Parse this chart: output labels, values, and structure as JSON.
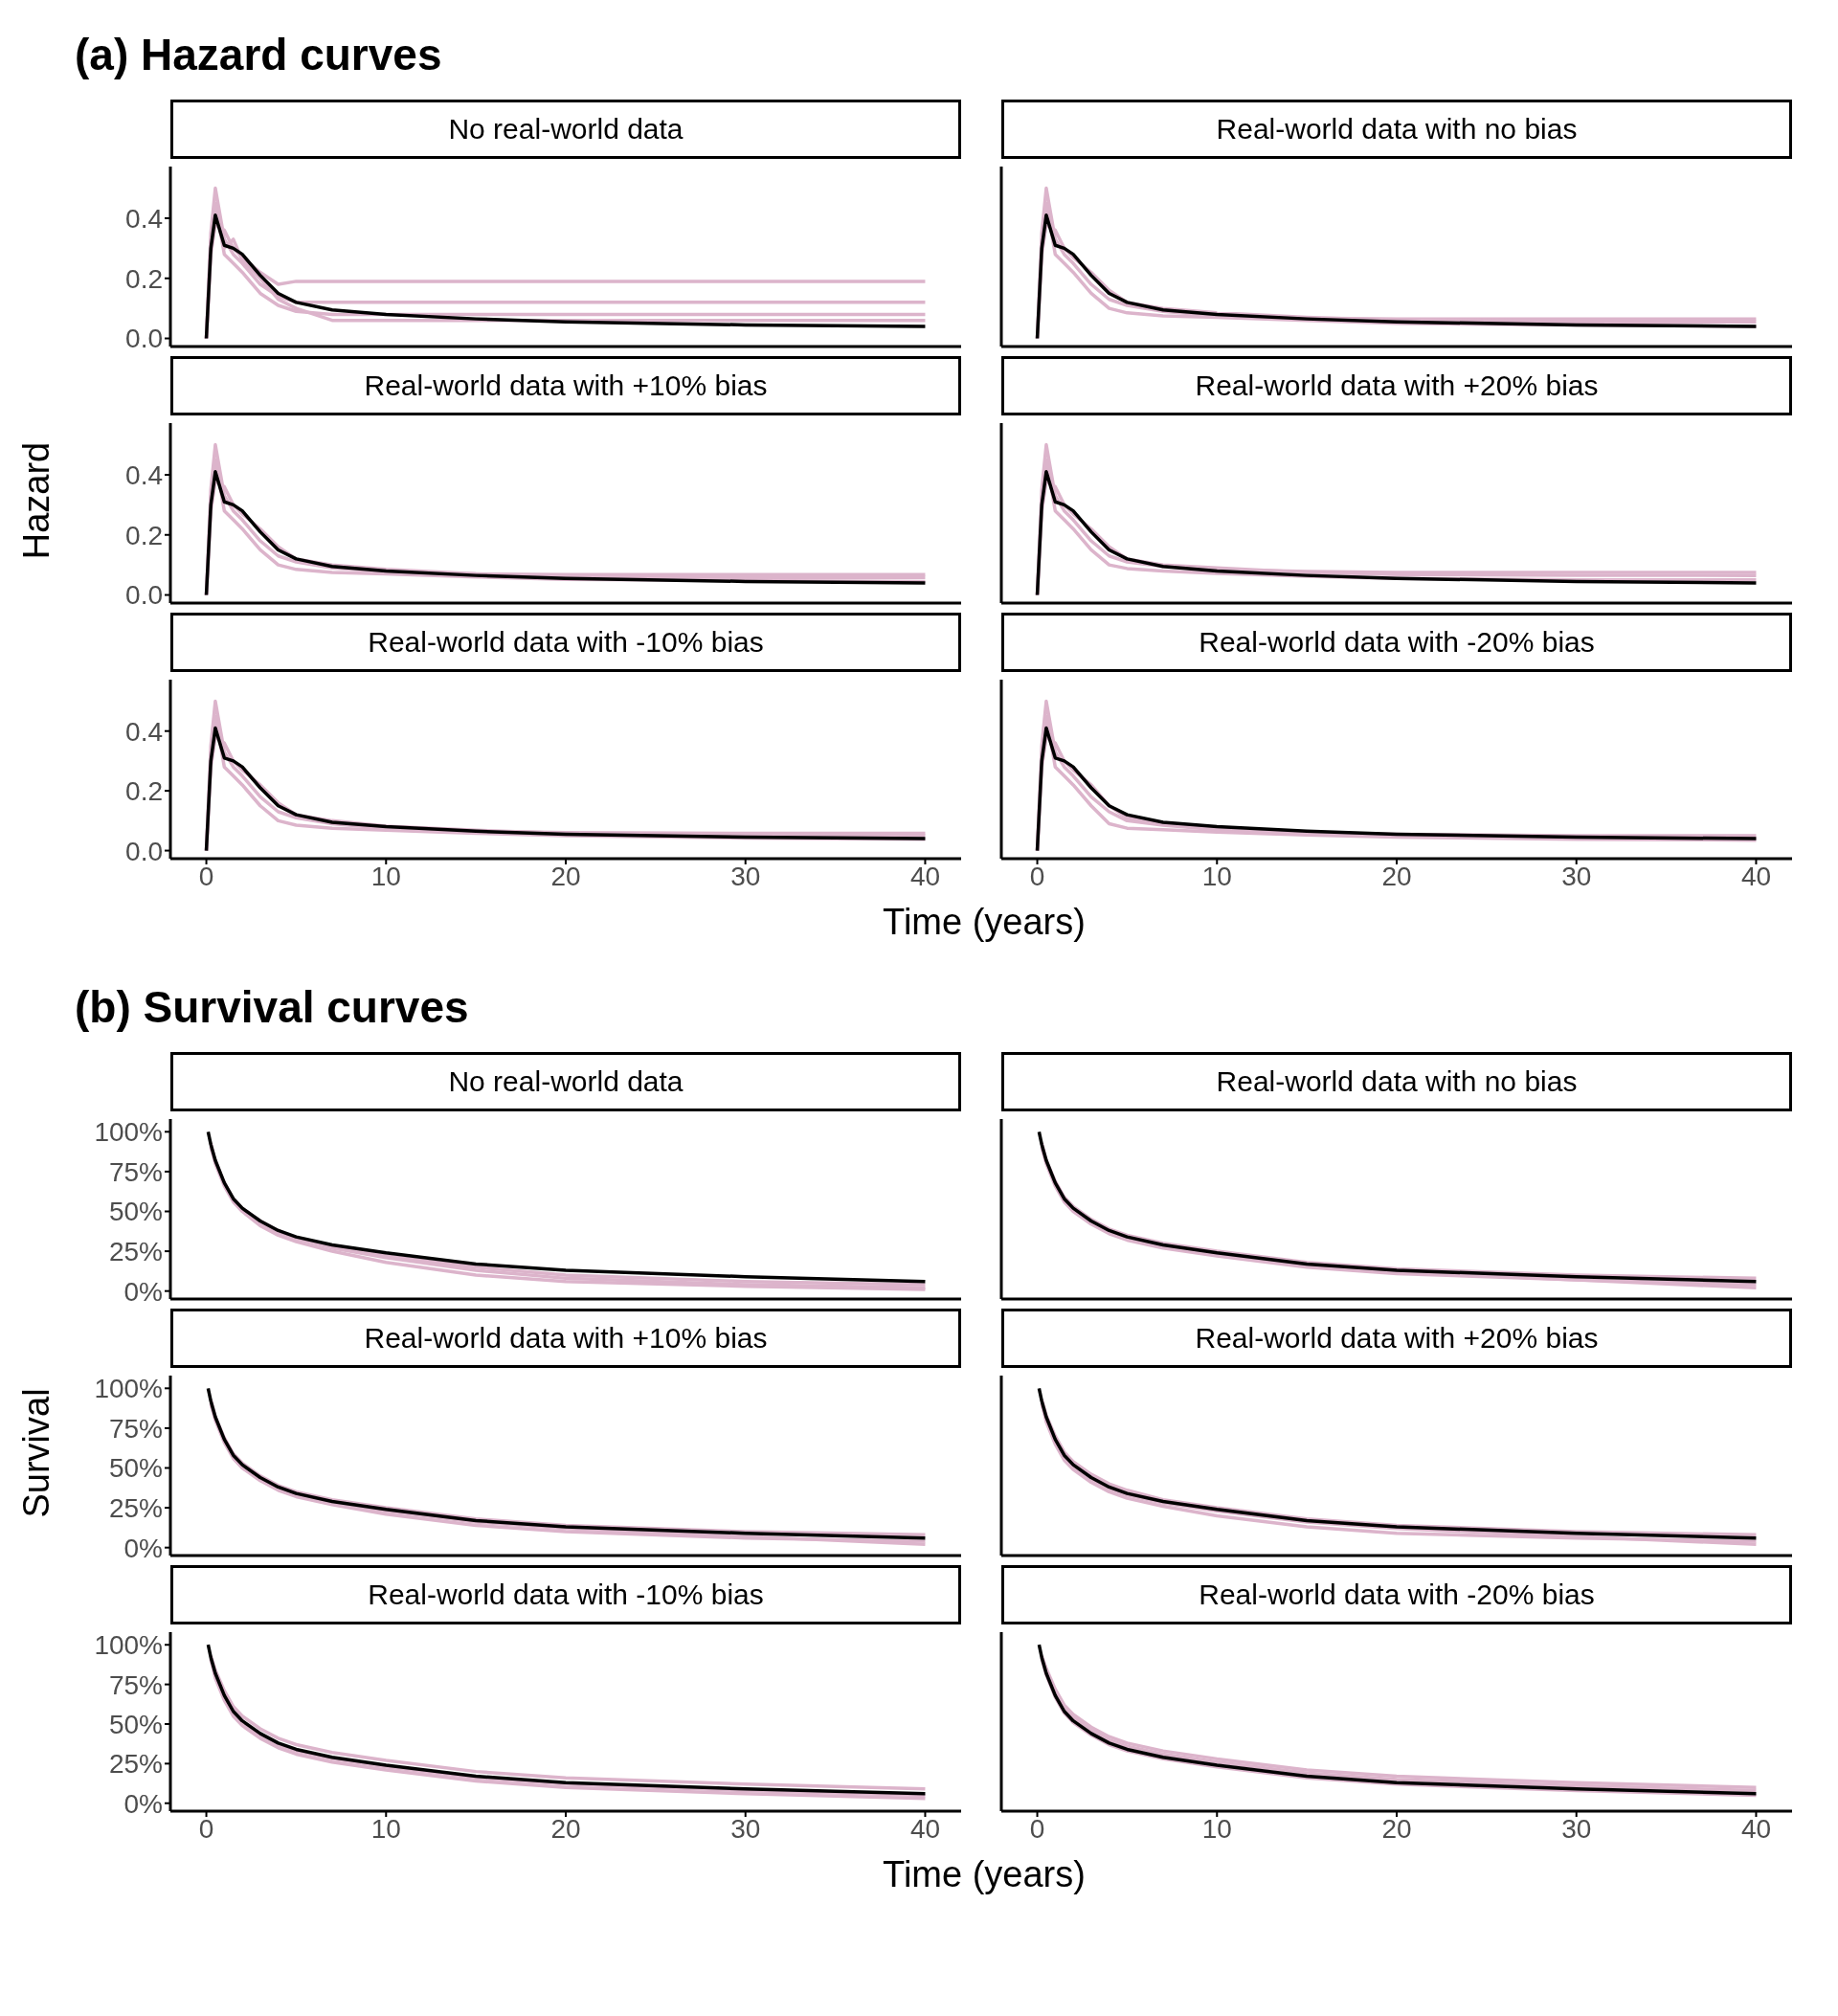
{
  "chart_data": [
    {
      "type": "line",
      "title": "(a) Hazard curves",
      "subtitle": "No real-world data",
      "tick_labels": "y",
      "marker": "none",
      "xlim": [
        -2,
        42
      ],
      "xticks": [
        0,
        10,
        20,
        30,
        40
      ],
      "ylim": [
        -0.027,
        0.572
      ],
      "yticks": [
        {
          "value": 0,
          "label": "0.0"
        },
        {
          "value": 0.2,
          "label": "0.2"
        },
        {
          "value": 0.4,
          "label": "0.4"
        }
      ],
      "x": [
        0,
        0.25,
        0.5,
        1,
        1.5,
        2,
        3,
        4,
        5,
        7,
        10,
        15,
        20,
        30,
        40
      ],
      "series": [
        {
          "color": "#dcb4cb",
          "values": [
            0,
            0.35,
            0.5,
            0.33,
            0.28,
            0.25,
            0.18,
            0.14,
            0.12,
            0.12,
            0.12,
            0.12,
            0.12,
            0.12,
            0.12
          ]
        },
        {
          "color": "#dcb4cb",
          "values": [
            0,
            0.28,
            0.38,
            0.36,
            0.3,
            0.27,
            0.22,
            0.18,
            0.19,
            0.19,
            0.19,
            0.19,
            0.19,
            0.19,
            0.19
          ]
        },
        {
          "color": "#dcb4cb",
          "values": [
            0,
            0.3,
            0.45,
            0.28,
            0.25,
            0.22,
            0.15,
            0.11,
            0.09,
            0.08,
            0.08,
            0.08,
            0.08,
            0.08,
            0.08
          ]
        },
        {
          "color": "#dcb4cb",
          "values": [
            0,
            0.32,
            0.42,
            0.3,
            0.33,
            0.26,
            0.2,
            0.13,
            0.1,
            0.06,
            0.06,
            0.06,
            0.06,
            0.06,
            0.06
          ]
        },
        {
          "color": "#000000",
          "values": [
            0,
            0.3,
            0.41,
            0.31,
            0.3,
            0.28,
            0.21,
            0.15,
            0.12,
            0.095,
            0.08,
            0.065,
            0.055,
            0.045,
            0.04
          ]
        }
      ]
    },
    {
      "type": "line",
      "subtitle": "Real-world data with no bias",
      "tick_labels": false,
      "marker": "none",
      "xlim": [
        -2,
        42
      ],
      "xticks": [
        0,
        10,
        20,
        30,
        40
      ],
      "ylim": [
        -0.027,
        0.572
      ],
      "x": [
        0,
        0.25,
        0.5,
        1,
        1.5,
        2,
        3,
        4,
        5,
        7,
        10,
        15,
        20,
        30,
        40
      ],
      "series": [
        {
          "color": "#dcb4cb",
          "values": [
            0,
            0.35,
            0.5,
            0.33,
            0.28,
            0.25,
            0.18,
            0.13,
            0.11,
            0.09,
            0.075,
            0.068,
            0.065,
            0.065,
            0.065
          ]
        },
        {
          "color": "#dcb4cb",
          "values": [
            0,
            0.28,
            0.38,
            0.36,
            0.3,
            0.27,
            0.22,
            0.16,
            0.12,
            0.1,
            0.085,
            0.07,
            0.06,
            0.055,
            0.055
          ]
        },
        {
          "color": "#dcb4cb",
          "values": [
            0,
            0.3,
            0.45,
            0.28,
            0.25,
            0.22,
            0.15,
            0.1,
            0.085,
            0.075,
            0.07,
            0.06,
            0.05,
            0.045,
            0.04
          ]
        },
        {
          "color": "#000000",
          "values": [
            0,
            0.3,
            0.41,
            0.31,
            0.3,
            0.28,
            0.21,
            0.15,
            0.12,
            0.095,
            0.08,
            0.065,
            0.055,
            0.045,
            0.04
          ]
        }
      ]
    },
    {
      "type": "line",
      "subtitle": "Real-world data with +10% bias",
      "ylabel": "Hazard",
      "tick_labels": "y",
      "marker": "none",
      "xlim": [
        -2,
        42
      ],
      "xticks": [
        0,
        10,
        20,
        30,
        40
      ],
      "ylim": [
        -0.027,
        0.572
      ],
      "yticks": [
        {
          "value": 0,
          "label": "0.0"
        },
        {
          "value": 0.2,
          "label": "0.2"
        },
        {
          "value": 0.4,
          "label": "0.4"
        }
      ],
      "x": [
        0,
        0.25,
        0.5,
        1,
        1.5,
        2,
        3,
        4,
        5,
        7,
        10,
        15,
        20,
        30,
        40
      ],
      "series": [
        {
          "color": "#dcb4cb",
          "values": [
            0,
            0.35,
            0.5,
            0.33,
            0.28,
            0.25,
            0.18,
            0.13,
            0.11,
            0.09,
            0.078,
            0.07,
            0.068,
            0.068,
            0.068
          ]
        },
        {
          "color": "#dcb4cb",
          "values": [
            0,
            0.28,
            0.38,
            0.36,
            0.3,
            0.27,
            0.22,
            0.16,
            0.12,
            0.1,
            0.085,
            0.07,
            0.062,
            0.058,
            0.058
          ]
        },
        {
          "color": "#dcb4cb",
          "values": [
            0,
            0.3,
            0.45,
            0.28,
            0.25,
            0.22,
            0.15,
            0.1,
            0.085,
            0.075,
            0.07,
            0.06,
            0.052,
            0.048,
            0.045
          ]
        },
        {
          "color": "#000000",
          "values": [
            0,
            0.3,
            0.41,
            0.31,
            0.3,
            0.28,
            0.21,
            0.15,
            0.12,
            0.095,
            0.08,
            0.065,
            0.055,
            0.045,
            0.04
          ]
        }
      ]
    },
    {
      "type": "line",
      "subtitle": "Real-world data with +20% bias",
      "tick_labels": false,
      "marker": "none",
      "xlim": [
        -2,
        42
      ],
      "xticks": [
        0,
        10,
        20,
        30,
        40
      ],
      "ylim": [
        -0.027,
        0.572
      ],
      "x": [
        0,
        0.25,
        0.5,
        1,
        1.5,
        2,
        3,
        4,
        5,
        7,
        10,
        15,
        20,
        30,
        40
      ],
      "series": [
        {
          "color": "#dcb4cb",
          "values": [
            0,
            0.35,
            0.5,
            0.33,
            0.28,
            0.25,
            0.18,
            0.13,
            0.11,
            0.095,
            0.085,
            0.078,
            0.075,
            0.075,
            0.075
          ]
        },
        {
          "color": "#dcb4cb",
          "values": [
            0,
            0.28,
            0.38,
            0.36,
            0.3,
            0.27,
            0.22,
            0.16,
            0.12,
            0.1,
            0.09,
            0.075,
            0.068,
            0.065,
            0.065
          ]
        },
        {
          "color": "#dcb4cb",
          "values": [
            0,
            0.3,
            0.45,
            0.28,
            0.25,
            0.22,
            0.15,
            0.1,
            0.088,
            0.08,
            0.072,
            0.062,
            0.055,
            0.05,
            0.05
          ]
        },
        {
          "color": "#000000",
          "values": [
            0,
            0.3,
            0.41,
            0.31,
            0.3,
            0.28,
            0.21,
            0.15,
            0.12,
            0.095,
            0.08,
            0.065,
            0.055,
            0.045,
            0.04
          ]
        }
      ]
    },
    {
      "type": "line",
      "subtitle": "Real-world data with -10% bias",
      "xlabel": "Time (years)",
      "marker": "none",
      "xlim": [
        -2,
        42
      ],
      "xticks": [
        0,
        10,
        20,
        30,
        40
      ],
      "ylim": [
        -0.027,
        0.572
      ],
      "yticks": [
        {
          "value": 0,
          "label": "0.0"
        },
        {
          "value": 0.2,
          "label": "0.2"
        },
        {
          "value": 0.4,
          "label": "0.4"
        }
      ],
      "x": [
        0,
        0.25,
        0.5,
        1,
        1.5,
        2,
        3,
        4,
        5,
        7,
        10,
        15,
        20,
        30,
        40
      ],
      "series": [
        {
          "color": "#dcb4cb",
          "values": [
            0,
            0.35,
            0.5,
            0.33,
            0.28,
            0.25,
            0.18,
            0.13,
            0.11,
            0.09,
            0.075,
            0.065,
            0.06,
            0.058,
            0.058
          ]
        },
        {
          "color": "#dcb4cb",
          "values": [
            0,
            0.28,
            0.38,
            0.36,
            0.3,
            0.27,
            0.22,
            0.16,
            0.12,
            0.1,
            0.082,
            0.068,
            0.058,
            0.052,
            0.05
          ]
        },
        {
          "color": "#dcb4cb",
          "values": [
            0,
            0.3,
            0.45,
            0.28,
            0.25,
            0.22,
            0.15,
            0.1,
            0.085,
            0.075,
            0.068,
            0.058,
            0.05,
            0.042,
            0.038
          ]
        },
        {
          "color": "#000000",
          "values": [
            0,
            0.3,
            0.41,
            0.31,
            0.3,
            0.28,
            0.21,
            0.15,
            0.12,
            0.095,
            0.08,
            0.065,
            0.055,
            0.045,
            0.04
          ]
        }
      ]
    },
    {
      "type": "line",
      "subtitle": "Real-world data with -20% bias",
      "tick_labels": "x",
      "marker": "none",
      "xlim": [
        -2,
        42
      ],
      "xticks": [
        0,
        10,
        20,
        30,
        40
      ],
      "ylim": [
        -0.027,
        0.572
      ],
      "x": [
        0,
        0.25,
        0.5,
        1,
        1.5,
        2,
        3,
        4,
        5,
        7,
        10,
        15,
        20,
        30,
        40
      ],
      "series": [
        {
          "color": "#dcb4cb",
          "values": [
            0,
            0.35,
            0.5,
            0.33,
            0.28,
            0.25,
            0.18,
            0.13,
            0.1,
            0.085,
            0.07,
            0.06,
            0.055,
            0.05,
            0.05
          ]
        },
        {
          "color": "#dcb4cb",
          "values": [
            0,
            0.28,
            0.38,
            0.36,
            0.3,
            0.27,
            0.22,
            0.15,
            0.11,
            0.09,
            0.075,
            0.062,
            0.052,
            0.045,
            0.042
          ]
        },
        {
          "color": "#dcb4cb",
          "values": [
            0,
            0.3,
            0.45,
            0.28,
            0.25,
            0.22,
            0.15,
            0.09,
            0.075,
            0.07,
            0.062,
            0.052,
            0.045,
            0.038,
            0.035
          ]
        },
        {
          "color": "#000000",
          "values": [
            0,
            0.3,
            0.41,
            0.31,
            0.3,
            0.28,
            0.21,
            0.15,
            0.12,
            0.095,
            0.08,
            0.065,
            0.055,
            0.045,
            0.04
          ]
        }
      ]
    },
    {
      "type": "line",
      "title": "(b) Survival curves",
      "subtitle": "No real-world data",
      "tick_labels": "y",
      "marker": "none",
      "xlim": [
        -2,
        42
      ],
      "xticks": [
        0,
        10,
        20,
        30,
        40
      ],
      "ylim": [
        -5,
        108
      ],
      "yticks": [
        {
          "value": 0,
          "label": "0%"
        },
        {
          "value": 25,
          "label": "25%"
        },
        {
          "value": 50,
          "label": "50%"
        },
        {
          "value": 75,
          "label": "75%"
        },
        {
          "value": 100,
          "label": "100%"
        }
      ],
      "x": [
        0.1,
        0.25,
        0.5,
        1,
        1.5,
        2,
        3,
        4,
        5,
        7,
        10,
        15,
        20,
        30,
        40
      ],
      "series": [
        {
          "color": "#dcb4cb",
          "x": [
            0.25,
            0.5,
            1,
            1.5,
            2,
            3,
            4,
            5,
            7,
            10,
            15,
            20,
            30,
            40
          ],
          "values": [
            93,
            81,
            67,
            57,
            51,
            43,
            37,
            33,
            27,
            21,
            13,
            8,
            4,
            2
          ]
        },
        {
          "color": "#dcb4cb",
          "x": [
            0.25,
            0.5,
            1,
            1.5,
            2,
            3,
            4,
            5,
            7,
            10,
            15,
            20,
            30,
            40
          ],
          "values": [
            91,
            80,
            66,
            56,
            50,
            41,
            35,
            31,
            25,
            18,
            10,
            6,
            3,
            1
          ]
        },
        {
          "color": "#dcb4cb",
          "x": [
            0.25,
            0.5,
            1,
            1.5,
            2,
            3,
            4,
            5,
            7,
            10,
            15,
            20,
            30,
            40
          ],
          "values": [
            90,
            82,
            68,
            58,
            52,
            44,
            38,
            33,
            28,
            22,
            15,
            10,
            6,
            4
          ]
        },
        {
          "color": "#000000",
          "values": [
            100,
            92,
            82,
            68,
            58,
            52,
            44,
            38,
            34,
            29,
            24,
            17,
            13,
            9,
            6
          ]
        }
      ]
    },
    {
      "type": "line",
      "subtitle": "Real-world data with no bias",
      "tick_labels": false,
      "marker": "none",
      "xlim": [
        -2,
        42
      ],
      "xticks": [
        0,
        10,
        20,
        30,
        40
      ],
      "ylim": [
        -5,
        108
      ],
      "x": [
        0.1,
        0.25,
        0.5,
        1,
        1.5,
        2,
        3,
        4,
        5,
        7,
        10,
        15,
        20,
        30,
        40
      ],
      "series": [
        {
          "color": "#dcb4cb",
          "x": [
            0.25,
            0.5,
            1,
            1.5,
            2,
            3,
            4,
            5,
            7,
            10,
            15,
            20,
            30,
            40
          ],
          "values": [
            93,
            82,
            69,
            59,
            53,
            45,
            39,
            35,
            30,
            25,
            18,
            14,
            10,
            8
          ]
        },
        {
          "color": "#dcb4cb",
          "x": [
            0.25,
            0.5,
            1,
            1.5,
            2,
            3,
            4,
            5,
            7,
            10,
            15,
            20,
            30,
            40
          ],
          "values": [
            91,
            80,
            66,
            56,
            50,
            42,
            36,
            32,
            27,
            22,
            15,
            11,
            7,
            4
          ]
        },
        {
          "color": "#dcb4cb",
          "x": [
            0.25,
            0.5,
            1,
            1.5,
            2,
            3,
            4,
            5,
            7,
            10,
            15,
            20,
            30,
            40
          ],
          "values": [
            90,
            81,
            67,
            57,
            51,
            43,
            37,
            33,
            28,
            23,
            16,
            12,
            7,
            2
          ]
        },
        {
          "color": "#000000",
          "values": [
            100,
            92,
            82,
            68,
            58,
            52,
            44,
            38,
            34,
            29,
            24,
            17,
            13,
            9,
            6
          ]
        }
      ]
    },
    {
      "type": "line",
      "subtitle": "Real-world data with +10% bias",
      "ylabel": "Survival",
      "tick_labels": "y",
      "marker": "none",
      "xlim": [
        -2,
        42
      ],
      "xticks": [
        0,
        10,
        20,
        30,
        40
      ],
      "ylim": [
        -5,
        108
      ],
      "yticks": [
        {
          "value": 0,
          "label": "0%"
        },
        {
          "value": 25,
          "label": "25%"
        },
        {
          "value": 50,
          "label": "50%"
        },
        {
          "value": 75,
          "label": "75%"
        },
        {
          "value": 100,
          "label": "100%"
        }
      ],
      "x": [
        0.1,
        0.25,
        0.5,
        1,
        1.5,
        2,
        3,
        4,
        5,
        7,
        10,
        15,
        20,
        30,
        40
      ],
      "series": [
        {
          "color": "#dcb4cb",
          "x": [
            0.25,
            0.5,
            1,
            1.5,
            2,
            3,
            4,
            5,
            7,
            10,
            15,
            20,
            30,
            40
          ],
          "values": [
            93,
            82,
            69,
            59,
            53,
            45,
            39,
            35,
            30,
            25,
            18,
            14,
            10,
            8
          ]
        },
        {
          "color": "#dcb4cb",
          "x": [
            0.25,
            0.5,
            1,
            1.5,
            2,
            3,
            4,
            5,
            7,
            10,
            15,
            20,
            30,
            40
          ],
          "values": [
            91,
            80,
            66,
            56,
            50,
            42,
            36,
            32,
            27,
            21,
            14,
            10,
            6,
            4
          ]
        },
        {
          "color": "#dcb4cb",
          "x": [
            0.25,
            0.5,
            1,
            1.5,
            2,
            3,
            4,
            5,
            7,
            10,
            15,
            20,
            30,
            40
          ],
          "values": [
            90,
            81,
            67,
            57,
            51,
            43,
            37,
            33,
            28,
            23,
            16,
            12,
            7,
            2
          ]
        },
        {
          "color": "#000000",
          "values": [
            100,
            92,
            82,
            68,
            58,
            52,
            44,
            38,
            34,
            29,
            24,
            17,
            13,
            9,
            6
          ]
        }
      ]
    },
    {
      "type": "line",
      "subtitle": "Real-world data with +20% bias",
      "tick_labels": false,
      "marker": "none",
      "xlim": [
        -2,
        42
      ],
      "xticks": [
        0,
        10,
        20,
        30,
        40
      ],
      "ylim": [
        -5,
        108
      ],
      "x": [
        0.1,
        0.25,
        0.5,
        1,
        1.5,
        2,
        3,
        4,
        5,
        7,
        10,
        15,
        20,
        30,
        40
      ],
      "series": [
        {
          "color": "#dcb4cb",
          "x": [
            0.25,
            0.5,
            1,
            1.5,
            2,
            3,
            4,
            5,
            7,
            10,
            15,
            20,
            30,
            40
          ],
          "values": [
            90,
            81,
            67,
            57,
            51,
            43,
            37,
            33,
            28,
            23,
            16,
            12,
            7,
            2
          ]
        },
        {
          "color": "#dcb4cb",
          "x": [
            0.25,
            0.5,
            1,
            1.5,
            2,
            3,
            4,
            5,
            7,
            10,
            15,
            20,
            30,
            40
          ],
          "values": [
            91,
            79,
            65,
            55,
            49,
            41,
            35,
            31,
            26,
            20,
            13,
            9,
            6,
            4
          ]
        },
        {
          "color": "#dcb4cb",
          "x": [
            0.25,
            0.5,
            1,
            1.5,
            2,
            3,
            4,
            5,
            7,
            10,
            15,
            20,
            30,
            40
          ],
          "values": [
            93,
            83,
            70,
            60,
            54,
            46,
            40,
            36,
            30,
            25,
            18,
            14,
            10,
            8
          ]
        },
        {
          "color": "#000000",
          "values": [
            100,
            92,
            82,
            68,
            58,
            52,
            44,
            38,
            34,
            29,
            24,
            17,
            13,
            9,
            6
          ]
        }
      ]
    },
    {
      "type": "line",
      "subtitle": "Real-world data with -10% bias",
      "xlabel": "Time (years)",
      "marker": "none",
      "xlim": [
        -2,
        42
      ],
      "xticks": [
        0,
        10,
        20,
        30,
        40
      ],
      "ylim": [
        -5,
        108
      ],
      "yticks": [
        {
          "value": 0,
          "label": "0%"
        },
        {
          "value": 25,
          "label": "25%"
        },
        {
          "value": 50,
          "label": "50%"
        },
        {
          "value": 75,
          "label": "75%"
        },
        {
          "value": 100,
          "label": "100%"
        }
      ],
      "x": [
        0.1,
        0.25,
        0.5,
        1,
        1.5,
        2,
        3,
        4,
        5,
        7,
        10,
        15,
        20,
        30,
        40
      ],
      "series": [
        {
          "color": "#dcb4cb",
          "x": [
            0.25,
            0.5,
            1,
            1.5,
            2,
            3,
            4,
            5,
            7,
            10,
            15,
            20,
            30,
            40
          ],
          "values": [
            93,
            84,
            71,
            61,
            55,
            47,
            41,
            37,
            32,
            27,
            20,
            16,
            12,
            9
          ]
        },
        {
          "color": "#dcb4cb",
          "x": [
            0.25,
            0.5,
            1,
            1.5,
            2,
            3,
            4,
            5,
            7,
            10,
            15,
            20,
            30,
            40
          ],
          "values": [
            91,
            81,
            67,
            57,
            51,
            43,
            37,
            33,
            28,
            23,
            16,
            12,
            8,
            5
          ]
        },
        {
          "color": "#dcb4cb",
          "x": [
            0.25,
            0.5,
            1,
            1.5,
            2,
            3,
            4,
            5,
            7,
            10,
            15,
            20,
            30,
            40
          ],
          "values": [
            91,
            79,
            65,
            55,
            49,
            41,
            35,
            31,
            26,
            21,
            14,
            10,
            6,
            3
          ]
        },
        {
          "color": "#000000",
          "values": [
            100,
            92,
            82,
            68,
            58,
            52,
            44,
            38,
            34,
            29,
            24,
            17,
            13,
            9,
            6
          ]
        }
      ]
    },
    {
      "type": "line",
      "subtitle": "Real-world data with -20% bias",
      "tick_labels": "x",
      "marker": "none",
      "xlim": [
        -2,
        42
      ],
      "xticks": [
        0,
        10,
        20,
        30,
        40
      ],
      "ylim": [
        -5,
        108
      ],
      "x": [
        0.1,
        0.25,
        0.5,
        1,
        1.5,
        2,
        3,
        4,
        5,
        7,
        10,
        15,
        20,
        30,
        40
      ],
      "series": [
        {
          "color": "#dcb4cb",
          "x": [
            0.25,
            0.5,
            1,
            1.5,
            2,
            3,
            4,
            5,
            7,
            10,
            15,
            20,
            30,
            40
          ],
          "values": [
            92,
            83,
            70,
            60,
            54,
            46,
            40,
            36,
            31,
            26,
            19,
            15,
            11,
            8
          ]
        },
        {
          "color": "#dcb4cb",
          "x": [
            0.25,
            0.5,
            1,
            1.5,
            2,
            3,
            4,
            5,
            7,
            10,
            15,
            20,
            30,
            40
          ],
          "values": [
            93,
            85,
            72,
            62,
            56,
            48,
            42,
            38,
            33,
            28,
            21,
            17,
            13,
            10
          ]
        },
        {
          "color": "#dcb4cb",
          "x": [
            0.25,
            0.5,
            1,
            1.5,
            2,
            3,
            4,
            5,
            7,
            10,
            15,
            20,
            30,
            40
          ],
          "values": [
            91,
            81,
            67,
            57,
            51,
            43,
            37,
            33,
            28,
            23,
            16,
            12,
            8,
            5
          ]
        },
        {
          "color": "#000000",
          "values": [
            100,
            92,
            82,
            68,
            58,
            52,
            44,
            38,
            34,
            29,
            24,
            17,
            13,
            9,
            6
          ]
        }
      ]
    }
  ]
}
